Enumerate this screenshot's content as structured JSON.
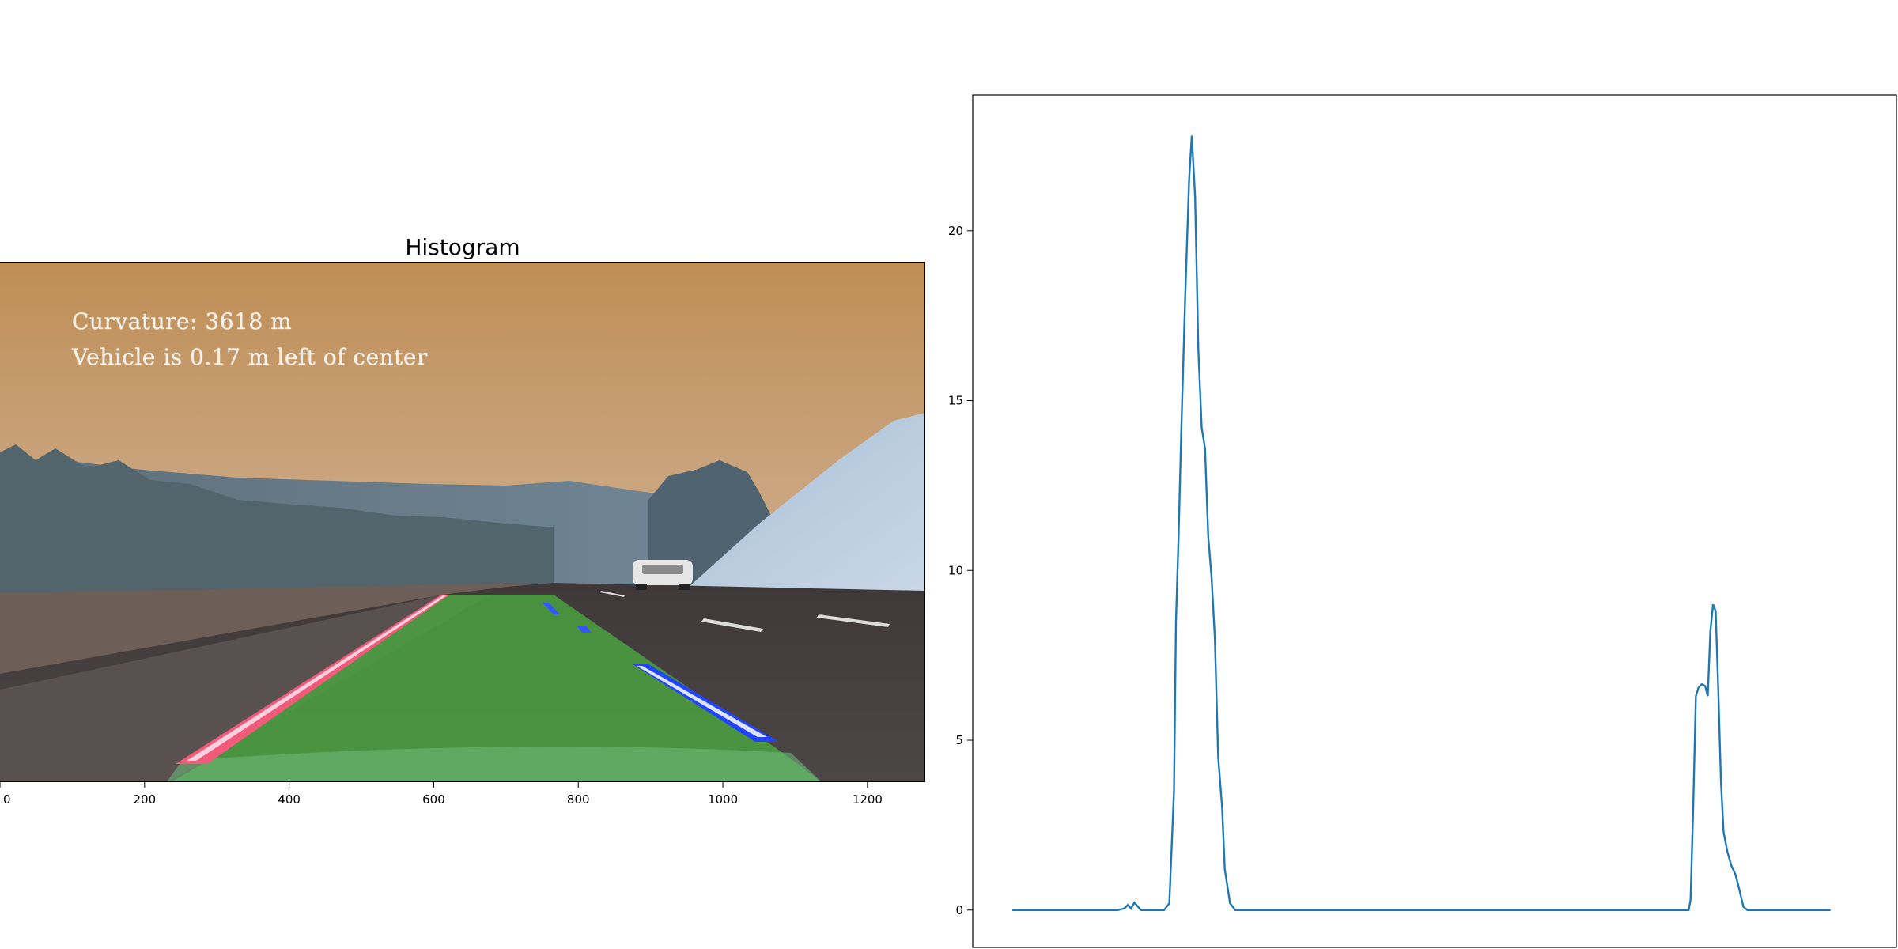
{
  "left_panel": {
    "title": "Histogram",
    "overlay_curvature": "Curvature: 3618 m",
    "overlay_offset": "Vehicle is 0.17 m left of center"
  },
  "chart_data": [
    {
      "type": "image",
      "xlabel": "",
      "ylabel": "",
      "xlim": [
        0,
        1280
      ],
      "x_ticks": [
        0,
        200,
        400,
        600,
        800,
        1000,
        1200
      ],
      "x_tick_labels": [
        "0",
        "200",
        "400",
        "600",
        "800",
        "1000",
        "1200"
      ],
      "grid": false
    },
    {
      "type": "line",
      "title": "",
      "xlabel": "",
      "ylabel": "",
      "ylim": [
        -1.1,
        24.0
      ],
      "xlim": [
        -60,
        1340
      ],
      "y_ticks": [
        0,
        5,
        10,
        15,
        20
      ],
      "y_tick_labels": [
        "0",
        "5",
        "10",
        "15",
        "20"
      ],
      "grid": false,
      "series": [
        {
          "color": "#1f77b4",
          "x": [
            0,
            100,
            160,
            170,
            175,
            180,
            185,
            195,
            230,
            238,
            245,
            248,
            252,
            256,
            262,
            268,
            272,
            277,
            282,
            287,
            292,
            297,
            302,
            307,
            312,
            318,
            322,
            330,
            338,
            350,
            360,
            380,
            1000,
            1025,
            1028,
            1032,
            1036,
            1040,
            1045,
            1050,
            1054,
            1058,
            1062,
            1066,
            1070,
            1074,
            1078,
            1084,
            1090,
            1096,
            1102,
            1108,
            1114,
            1120,
            1128,
            1240
          ],
          "y": [
            0,
            0,
            0,
            0.05,
            0.15,
            0.05,
            0.22,
            0,
            0,
            0.2,
            3.5,
            8.5,
            11,
            14,
            18,
            21.5,
            22.8,
            21,
            16.5,
            14.2,
            13.6,
            11,
            9.8,
            8,
            4.5,
            3,
            1.2,
            0.2,
            0,
            0,
            0,
            0,
            0,
            0,
            0.3,
            3,
            6.3,
            6.55,
            6.65,
            6.6,
            6.3,
            8.2,
            9,
            8.8,
            6.5,
            3.8,
            2.3,
            1.7,
            1.3,
            1.05,
            0.6,
            0.1,
            0,
            0,
            0,
            0
          ]
        }
      ]
    }
  ]
}
